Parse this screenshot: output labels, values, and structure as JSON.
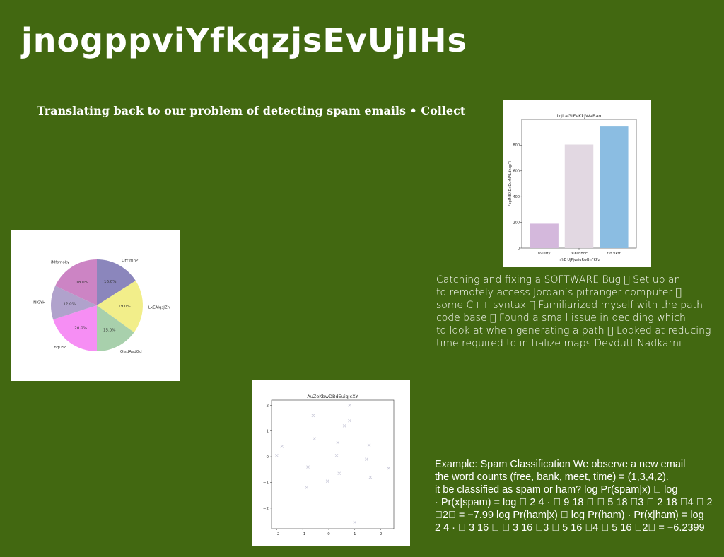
{
  "page": {
    "title": "jnogppviYfkqzjsEvUjIHs",
    "subtitle": "Translating back to our problem of detecting spam emails • Collect"
  },
  "text_block_1": {
    "lines": [
      "Catching and fixing a SOFTWARE Bug \u0000 Set up an",
      "to remotely access Jordan’s pitranger computer \u0000",
      "some C++ syntax \u0000 Familiarized myself with the path",
      "code base \u0000 Found a small issue in deciding which",
      "to look at when generating a path \u0000 Looked at reducing",
      "time required to initialize maps Devdutt Nadkarni -"
    ]
  },
  "text_block_2": {
    "lines": [
      "Example: Spam Classification We observe a new email",
      "the word counts (free, bank, meet, time) = (1,3,4,2).",
      "it be classified as spam or ham? log Pr(spam|x) \u0000 log",
      "· Pr(x|spam) = log \u0000 2 4 · \u0000 9 18 \u0000 \u0000 5 18 \u00003 \u0000 2 18 \u00004 \u0000 2",
      "\u00002\u0000 = −7.99 log Pr(ham|x) \u0000 log Pr(ham) · Pr(x|ham) = log",
      "2 4 · \u0000 3 16 \u0000 \u0000 3 16 \u00003 \u0000 5 16 \u00004 \u0000 5 16 \u00002\u0000 = −6.2399"
    ]
  },
  "chart_data": [
    {
      "type": "bar",
      "title": "ikJi aGtFvKkjWaBao",
      "xlabel": "nfhE UjPjvaiuRwBnFKPz",
      "ylabel": "FppIMBXDxDurNALdnqpTi",
      "categories": [
        "nVieHy",
        "feXabBqE",
        "tPr VkfY"
      ],
      "values": [
        190,
        805,
        950
      ],
      "colors": [
        "#d4b8dc",
        "#e2d8e2",
        "#8bbde2"
      ],
      "ylim": [
        0,
        1000
      ],
      "yticks": [
        0,
        200,
        400,
        600,
        800
      ]
    },
    {
      "type": "pie",
      "labels": [
        "OFr mnP",
        "LxEAIqsJZh",
        "QisdAedGd",
        "nqOSc",
        "NIGYH",
        "iMfsmoky"
      ],
      "values": [
        16.0,
        19.0,
        15.0,
        20.0,
        12.0,
        18.0
      ],
      "value_labels": [
        "16.0%",
        "19.0%",
        "15.0%",
        "20.0%",
        "12.0%",
        "18.0%"
      ],
      "colors": [
        "#8b86bc",
        "#f2ee8a",
        "#a8d0ac",
        "#f68ef4",
        "#b0a2cc",
        "#cc84c4"
      ]
    },
    {
      "type": "scatter",
      "title": "AuZoKbwDBdEuiqIcXY",
      "xlim": [
        -2.2,
        2.5
      ],
      "ylim": [
        -2.8,
        2.2
      ],
      "xticks": [
        -2,
        -1,
        0,
        1,
        2
      ],
      "yticks": [
        -2,
        -1,
        0,
        1,
        2
      ],
      "marker": "x",
      "color": "#c8c8d8",
      "x": [
        -2.0,
        -1.8,
        -0.85,
        -0.8,
        -0.6,
        -0.55,
        -0.05,
        0.3,
        0.35,
        0.4,
        0.6,
        0.8,
        0.8,
        1.0,
        1.45,
        1.55,
        1.6,
        2.3
      ],
      "y": [
        0.05,
        0.4,
        -1.2,
        -0.4,
        1.6,
        0.7,
        -0.95,
        0.05,
        0.55,
        -0.65,
        1.2,
        2.0,
        1.4,
        -2.55,
        -0.1,
        0.45,
        -0.8,
        -0.45
      ]
    }
  ]
}
